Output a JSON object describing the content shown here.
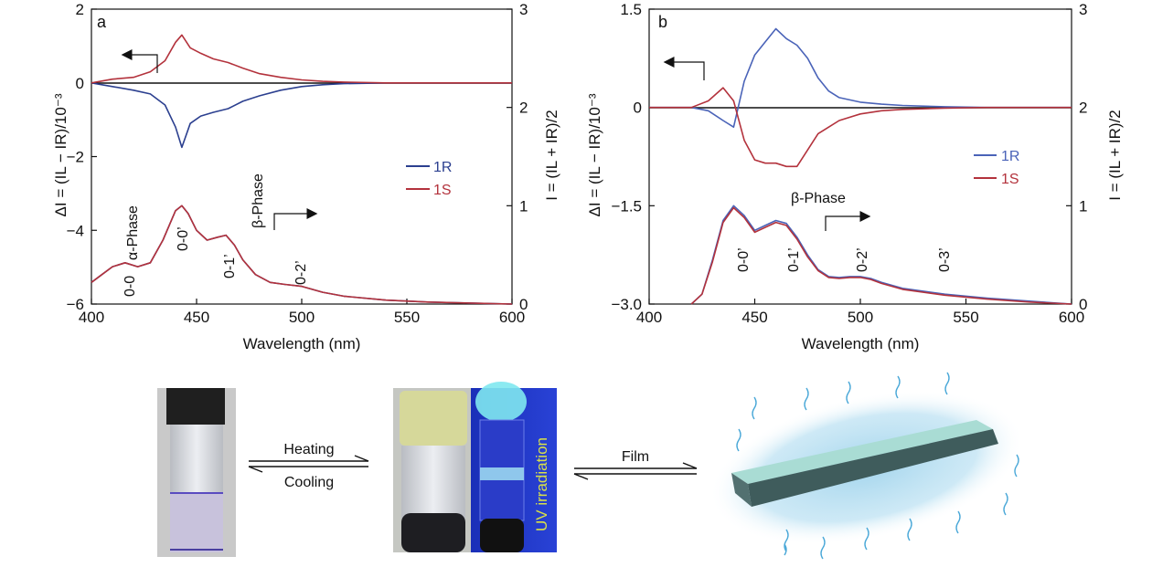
{
  "chart_data": [
    {
      "type": "line",
      "panel_label": "a",
      "xlabel": "Wavelength (nm)",
      "ylabel_left": "ΔI = (IL − IR)/10⁻³",
      "ylabel_right": "I = (IL + IR)/2",
      "xlim": [
        400,
        600
      ],
      "xticks": [
        400,
        450,
        500,
        550,
        600
      ],
      "ylim_left": [
        -6,
        2
      ],
      "yticks_left": [
        -6,
        -4,
        -2,
        0,
        2
      ],
      "ylim_right": [
        0,
        3
      ],
      "yticks_right": [
        0,
        1,
        2,
        3
      ],
      "legend": [
        "1R",
        "1S"
      ],
      "legend_position": "center-right",
      "colors": {
        "1R": "#2b3f8f",
        "1S": "#b3323c"
      },
      "phase_labels": [
        "α-Phase",
        "β-Phase"
      ],
      "peak_labels": [
        "0-0",
        "0-0’",
        "0-1’",
        "0-2’"
      ],
      "series": [
        {
          "name": "1R",
          "axis": "left",
          "x": [
            400,
            410,
            420,
            428,
            435,
            440,
            443,
            447,
            452,
            458,
            465,
            472,
            480,
            490,
            500,
            510,
            520,
            540,
            560,
            580,
            600
          ],
          "y": [
            0,
            -0.1,
            -0.2,
            -0.3,
            -0.6,
            -1.2,
            -1.75,
            -1.1,
            -0.9,
            -0.8,
            -0.7,
            -0.5,
            -0.35,
            -0.2,
            -0.1,
            -0.05,
            -0.02,
            0,
            0,
            0,
            0
          ]
        },
        {
          "name": "1S",
          "axis": "left",
          "x": [
            400,
            410,
            420,
            428,
            435,
            440,
            443,
            447,
            452,
            458,
            465,
            472,
            480,
            490,
            500,
            510,
            520,
            540,
            560,
            580,
            600
          ],
          "y": [
            0,
            0.1,
            0.15,
            0.3,
            0.6,
            1.1,
            1.3,
            0.95,
            0.8,
            0.65,
            0.55,
            0.4,
            0.25,
            0.15,
            0.08,
            0.04,
            0.02,
            0,
            0,
            0,
            0
          ]
        },
        {
          "name": "1R",
          "axis": "right",
          "x": [
            400,
            405,
            410,
            416,
            422,
            428,
            434,
            440,
            443,
            446,
            450,
            455,
            460,
            464,
            468,
            472,
            478,
            485,
            492,
            500,
            510,
            520,
            540,
            560,
            580,
            600
          ],
          "y": [
            0.22,
            0.3,
            0.38,
            0.42,
            0.38,
            0.42,
            0.65,
            0.95,
            1.0,
            0.92,
            0.75,
            0.65,
            0.68,
            0.7,
            0.6,
            0.45,
            0.3,
            0.22,
            0.2,
            0.18,
            0.12,
            0.08,
            0.04,
            0.02,
            0.01,
            0
          ]
        },
        {
          "name": "1S",
          "axis": "right",
          "x": [
            400,
            405,
            410,
            416,
            422,
            428,
            434,
            440,
            443,
            446,
            450,
            455,
            460,
            464,
            468,
            472,
            478,
            485,
            492,
            500,
            510,
            520,
            540,
            560,
            580,
            600
          ],
          "y": [
            0.22,
            0.3,
            0.38,
            0.42,
            0.38,
            0.42,
            0.65,
            0.95,
            1.0,
            0.92,
            0.75,
            0.65,
            0.68,
            0.7,
            0.6,
            0.45,
            0.3,
            0.22,
            0.2,
            0.18,
            0.12,
            0.08,
            0.04,
            0.02,
            0.01,
            0
          ]
        }
      ]
    },
    {
      "type": "line",
      "panel_label": "b",
      "xlabel": "Wavelength (nm)",
      "ylabel_left": "ΔI = (IL − IR)/10⁻³",
      "ylabel_right": "I = (IL + IR)/2",
      "xlim": [
        400,
        600
      ],
      "xticks": [
        400,
        450,
        500,
        550,
        600
      ],
      "ylim_left": [
        -3.0,
        1.5
      ],
      "yticks_left": [
        -3.0,
        -1.5,
        0,
        1.5
      ],
      "yticklabels_left": [
        "−3.0",
        "−1.5",
        "0",
        "1.5"
      ],
      "ylim_right": [
        0,
        3
      ],
      "yticks_right": [
        0,
        1,
        2,
        3
      ],
      "legend": [
        "1R",
        "1S"
      ],
      "legend_position": "center-right",
      "colors": {
        "1R": "#4a63b8",
        "1S": "#b3323c"
      },
      "phase_labels": [
        "β-Phase"
      ],
      "peak_labels": [
        "0-0’",
        "0-1’",
        "0-2’",
        "0-3’"
      ],
      "series": [
        {
          "name": "1R",
          "axis": "left",
          "x": [
            400,
            420,
            428,
            435,
            440,
            445,
            450,
            455,
            460,
            465,
            470,
            475,
            480,
            485,
            490,
            500,
            510,
            520,
            540,
            560,
            580,
            600
          ],
          "y": [
            0,
            0,
            -0.05,
            -0.2,
            -0.3,
            0.4,
            0.8,
            1.0,
            1.2,
            1.05,
            0.95,
            0.75,
            0.45,
            0.25,
            0.15,
            0.08,
            0.05,
            0.03,
            0.01,
            0,
            0,
            0
          ]
        },
        {
          "name": "1S",
          "axis": "left",
          "x": [
            400,
            420,
            428,
            435,
            440,
            445,
            450,
            455,
            460,
            465,
            470,
            475,
            480,
            485,
            490,
            500,
            510,
            520,
            540,
            560,
            580,
            600
          ],
          "y": [
            0,
            0,
            0.1,
            0.3,
            0.1,
            -0.5,
            -0.8,
            -0.85,
            -0.85,
            -0.9,
            -0.9,
            -0.65,
            -0.4,
            -0.3,
            -0.2,
            -0.1,
            -0.05,
            -0.03,
            -0.01,
            0,
            0,
            0
          ]
        },
        {
          "name": "1R",
          "axis": "right",
          "x": [
            420,
            425,
            430,
            435,
            440,
            445,
            450,
            455,
            460,
            465,
            470,
            475,
            480,
            485,
            490,
            495,
            500,
            505,
            510,
            520,
            540,
            560,
            580,
            600
          ],
          "y": [
            0.0,
            0.1,
            0.45,
            0.85,
            1.0,
            0.9,
            0.75,
            0.8,
            0.85,
            0.82,
            0.68,
            0.5,
            0.35,
            0.28,
            0.27,
            0.28,
            0.28,
            0.26,
            0.22,
            0.16,
            0.1,
            0.06,
            0.03,
            0
          ]
        },
        {
          "name": "1S",
          "axis": "right",
          "x": [
            420,
            425,
            430,
            435,
            440,
            445,
            450,
            455,
            460,
            465,
            470,
            475,
            480,
            485,
            490,
            495,
            500,
            505,
            510,
            520,
            540,
            560,
            580,
            600
          ],
          "y": [
            0.0,
            0.1,
            0.43,
            0.83,
            0.98,
            0.88,
            0.73,
            0.78,
            0.83,
            0.8,
            0.66,
            0.48,
            0.34,
            0.27,
            0.26,
            0.27,
            0.27,
            0.25,
            0.21,
            0.15,
            0.09,
            0.05,
            0.02,
            0
          ]
        }
      ]
    }
  ],
  "schematic": {
    "arrow1_top": "Heating",
    "arrow1_bottom": "Cooling",
    "uv_label": "UV irradiation",
    "arrow2_top": "Film"
  }
}
